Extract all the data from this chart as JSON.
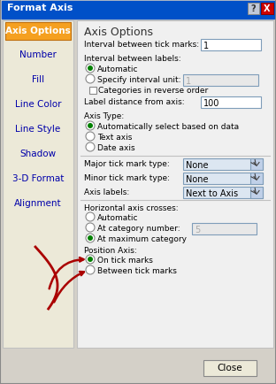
{
  "title": "Format Axis",
  "title_bar_color": "#0050c8",
  "title_text_color": "#ffffff",
  "bg_color": "#d4d0c8",
  "panel_bg": "#f0f0f0",
  "sidebar_bg": "#f5f5f5",
  "sidebar_selected_bg": "#f5a020",
  "sidebar_selected_text": "#ffffff",
  "sidebar_items": [
    "Axis Options",
    "Number",
    "Fill",
    "Line Color",
    "Line Style",
    "Shadow",
    "3-D Format",
    "Alignment"
  ],
  "section_title": "Axis Options",
  "radio_green": "#008000",
  "arrow_color": "#aa0000",
  "close_btn_color": "#cc0000"
}
